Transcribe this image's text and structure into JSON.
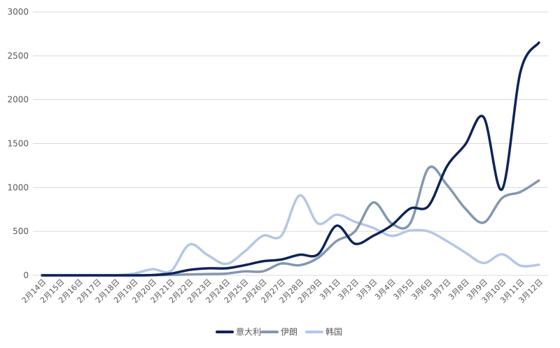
{
  "chart_data": {
    "type": "line",
    "categories": [
      "2月14日",
      "2月15日",
      "2月16日",
      "2月17日",
      "2月18日",
      "2月19日",
      "2月20日",
      "2月21日",
      "2月22日",
      "2月23日",
      "2月24日",
      "2月25日",
      "2月26日",
      "2月27日",
      "2月28日",
      "2月29日",
      "3月1日",
      "3月2日",
      "3月3日",
      "3月4日",
      "3月5日",
      "3月6日",
      "3月7日",
      "3月8日",
      "3月9日",
      "3月10日",
      "3月11日",
      "3月12日"
    ],
    "series": [
      {
        "name": "意大利",
        "color": "#0d2359",
        "values": [
          0,
          0,
          0,
          0,
          0,
          0,
          3,
          20,
          62,
          80,
          80,
          115,
          160,
          180,
          235,
          240,
          565,
          360,
          450,
          570,
          760,
          790,
          1240,
          1490,
          1800,
          980,
          2320,
          2650
        ]
      },
      {
        "name": "伊朗",
        "color": "#8497b0",
        "values": [
          0,
          0,
          0,
          0,
          0,
          0,
          2,
          5,
          10,
          15,
          20,
          45,
          45,
          135,
          115,
          200,
          390,
          500,
          830,
          590,
          590,
          1220,
          1030,
          760,
          600,
          880,
          950,
          1080
        ]
      },
      {
        "name": "韩国",
        "color": "#b4c7e7",
        "values": [
          0,
          0,
          0,
          0,
          0,
          20,
          70,
          50,
          350,
          230,
          130,
          270,
          450,
          450,
          910,
          590,
          690,
          610,
          540,
          450,
          510,
          500,
          390,
          260,
          140,
          240,
          110,
          120
        ]
      }
    ],
    "ylim": [
      0,
      3000
    ],
    "yticks": [
      "0",
      "500",
      "1000",
      "1500",
      "2000",
      "2500",
      "3000"
    ],
    "grid": true,
    "legend_position": "bottom"
  }
}
